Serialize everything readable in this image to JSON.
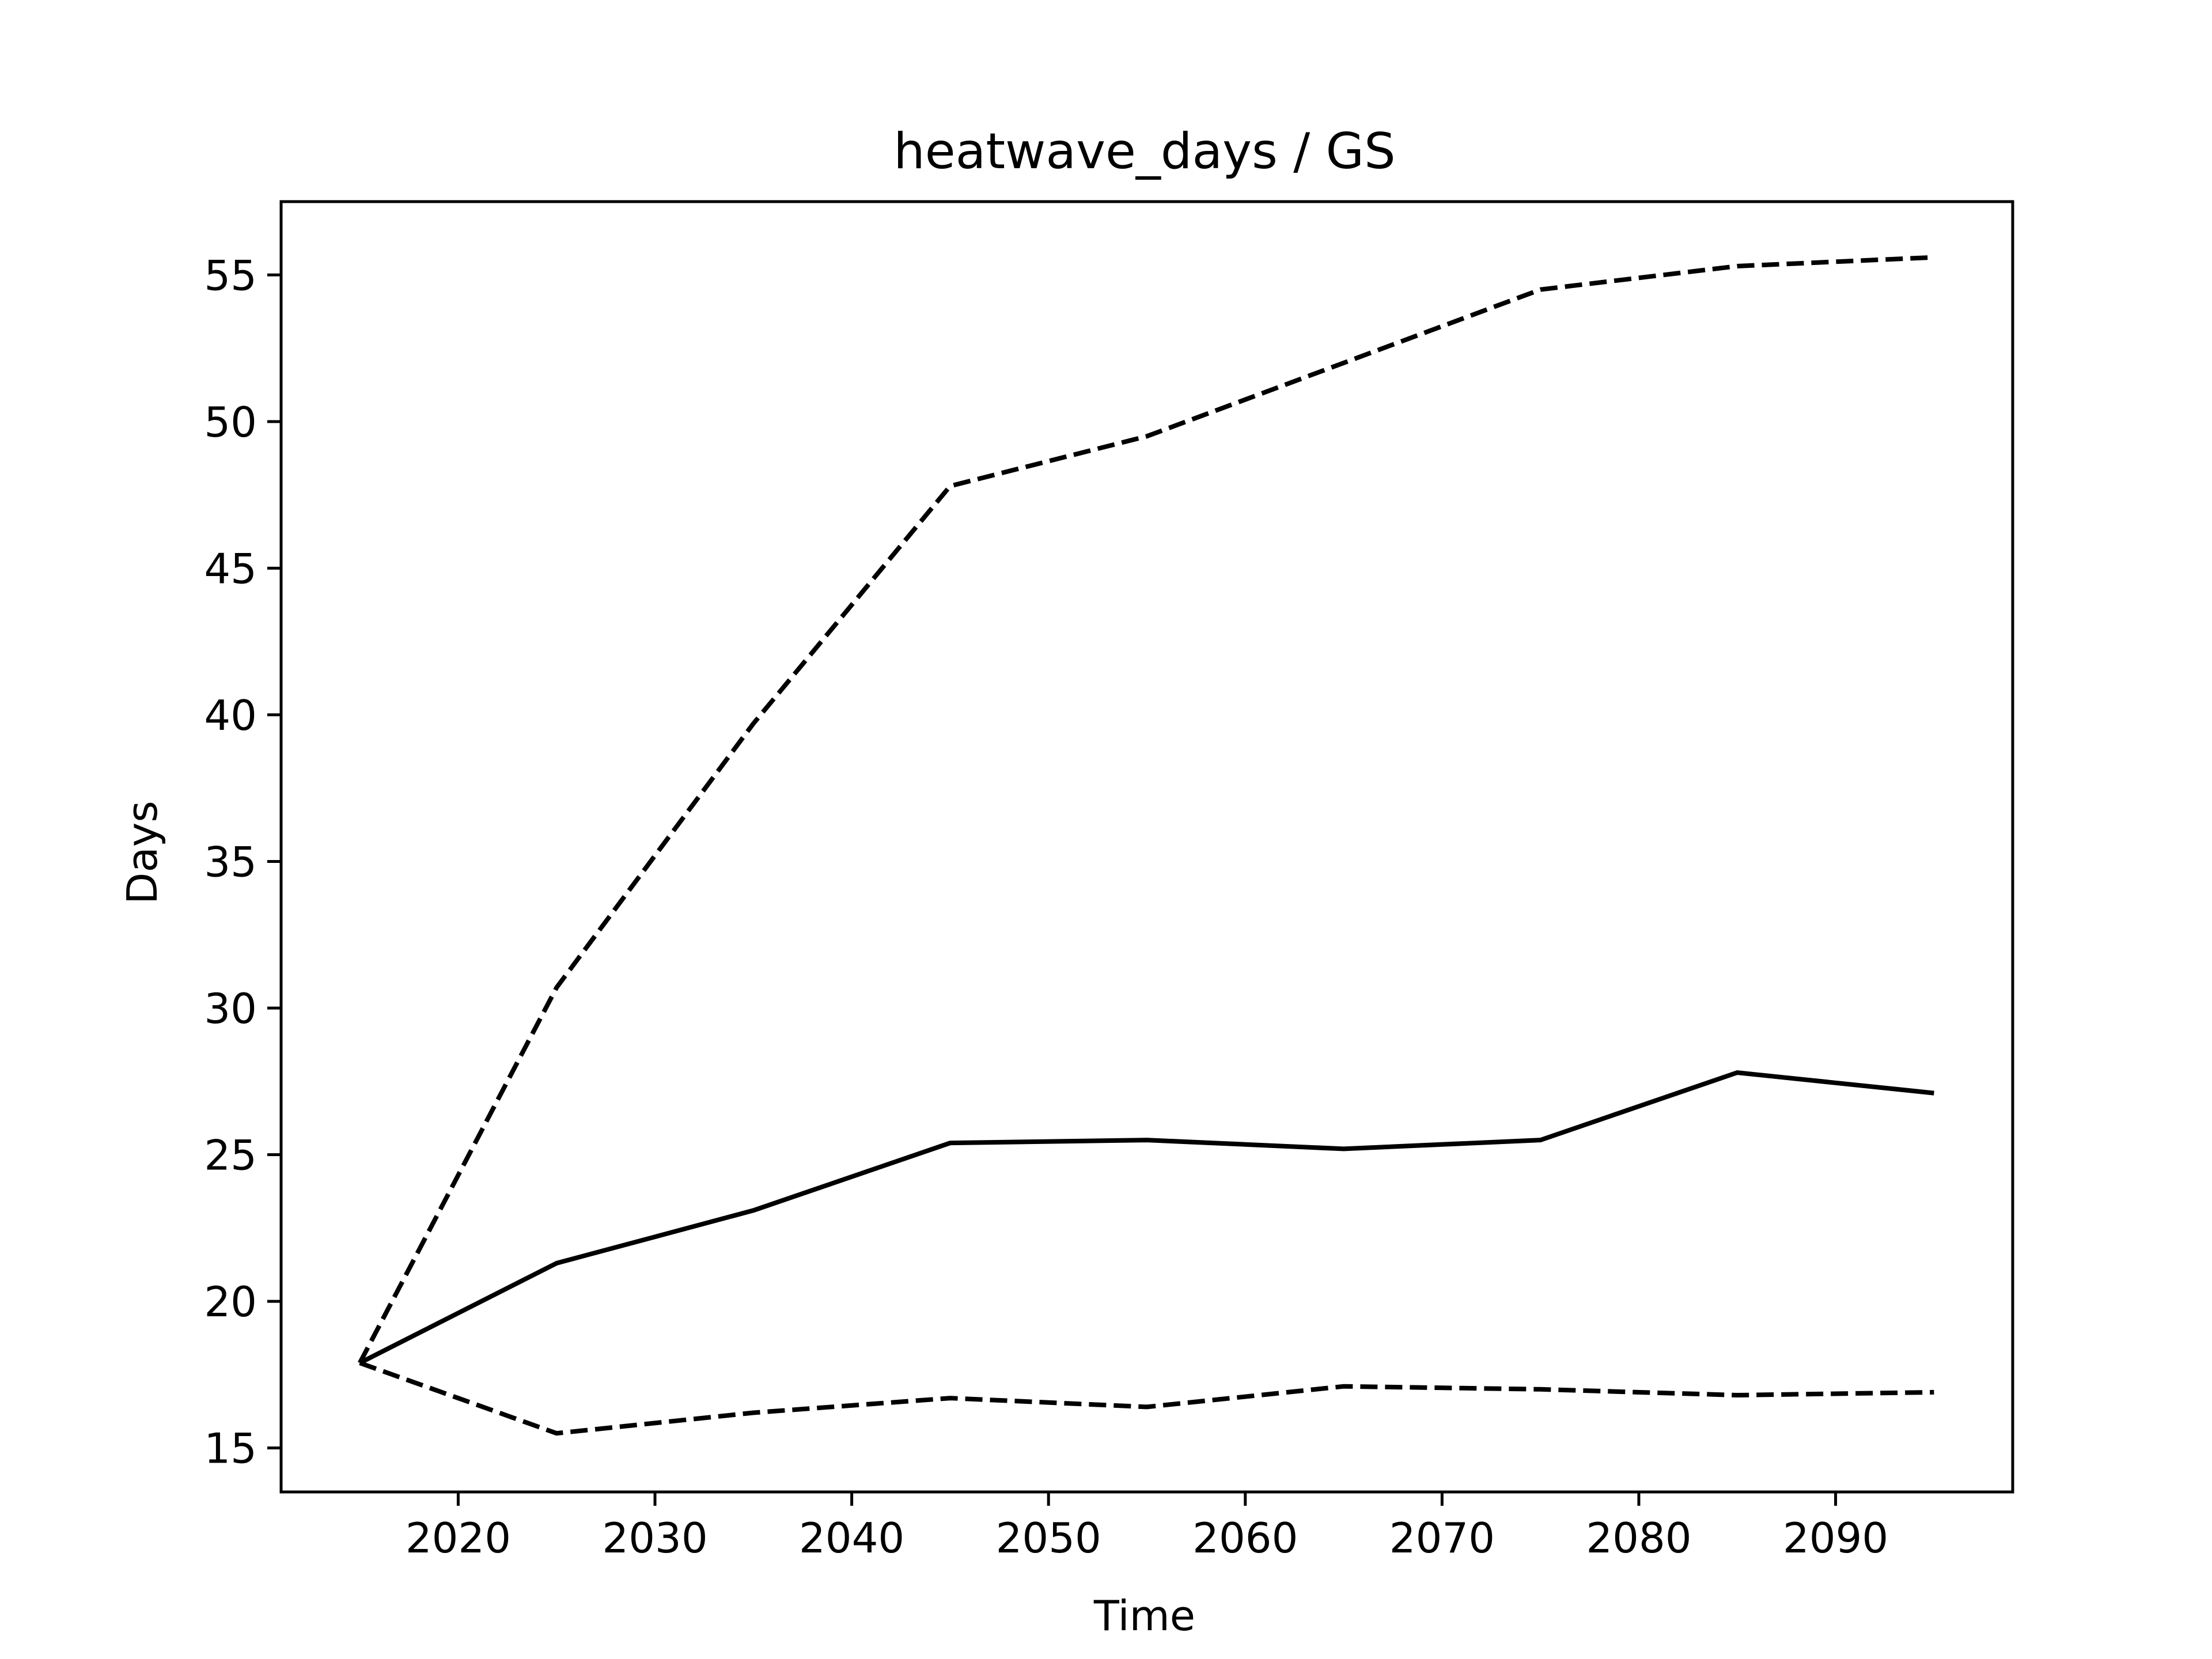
{
  "chart_data": {
    "type": "line",
    "title": "heatwave_days / GS",
    "xlabel": "Time",
    "ylabel": "Days",
    "xlim": [
      2011,
      2099
    ],
    "ylim": [
      13.5,
      57.5
    ],
    "xticks": [
      2020,
      2030,
      2040,
      2050,
      2060,
      2070,
      2080,
      2090
    ],
    "yticks": [
      15,
      20,
      25,
      30,
      35,
      40,
      45,
      50,
      55
    ],
    "grid": false,
    "x": [
      2015,
      2025,
      2035,
      2045,
      2055,
      2065,
      2075,
      2085,
      2095
    ],
    "series": [
      {
        "line_style": "dashed",
        "color": "#000000",
        "values": [
          17.9,
          30.7,
          39.7,
          47.8,
          49.5,
          52.0,
          54.5,
          55.3,
          55.6
        ]
      },
      {
        "line_style": "solid",
        "color": "#000000",
        "values": [
          17.9,
          21.3,
          23.1,
          25.4,
          25.5,
          25.2,
          25.5,
          27.8,
          27.1
        ]
      },
      {
        "line_style": "dashed",
        "color": "#000000",
        "values": [
          17.9,
          15.5,
          16.2,
          16.7,
          16.4,
          17.1,
          17.0,
          16.8,
          16.9
        ]
      }
    ]
  }
}
